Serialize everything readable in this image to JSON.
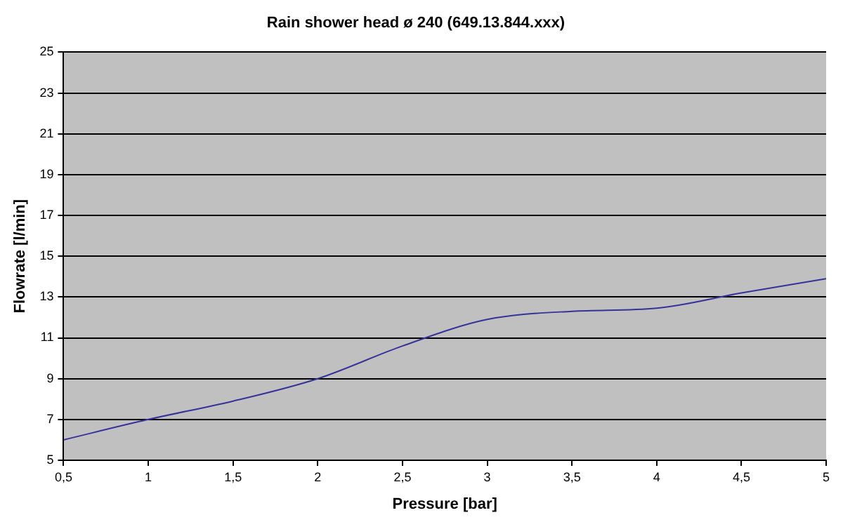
{
  "chart_data": {
    "type": "line",
    "title": "Rain shower head ø 240 (649.13.844.xxx)",
    "xlabel": "Pressure [bar]",
    "ylabel": "Flowrate [l/min]",
    "x": [
      0.5,
      1,
      1.5,
      2,
      2.5,
      3,
      3.5,
      4,
      4.5,
      5
    ],
    "series": [
      {
        "color": "#333399",
        "values": [
          6.0,
          7.0,
          7.9,
          9.0,
          10.6,
          11.9,
          12.3,
          12.45,
          13.2,
          13.9
        ]
      }
    ],
    "xlim": [
      0.5,
      5
    ],
    "xticks": [
      {
        "value": 0.5,
        "label": "0,5"
      },
      1,
      {
        "value": 1.5,
        "label": "1,5"
      },
      2,
      {
        "value": 2.5,
        "label": "2,5"
      },
      3,
      {
        "value": 3.5,
        "label": "3,5"
      },
      4,
      {
        "value": 4.5,
        "label": "4,5"
      },
      5
    ],
    "ylim": [
      5,
      25
    ],
    "yticks": [
      5,
      7,
      9,
      11,
      13,
      15,
      17,
      19,
      21,
      23,
      25
    ],
    "grid": "y",
    "legend": false,
    "marker": "none",
    "line_style": "solid"
  }
}
